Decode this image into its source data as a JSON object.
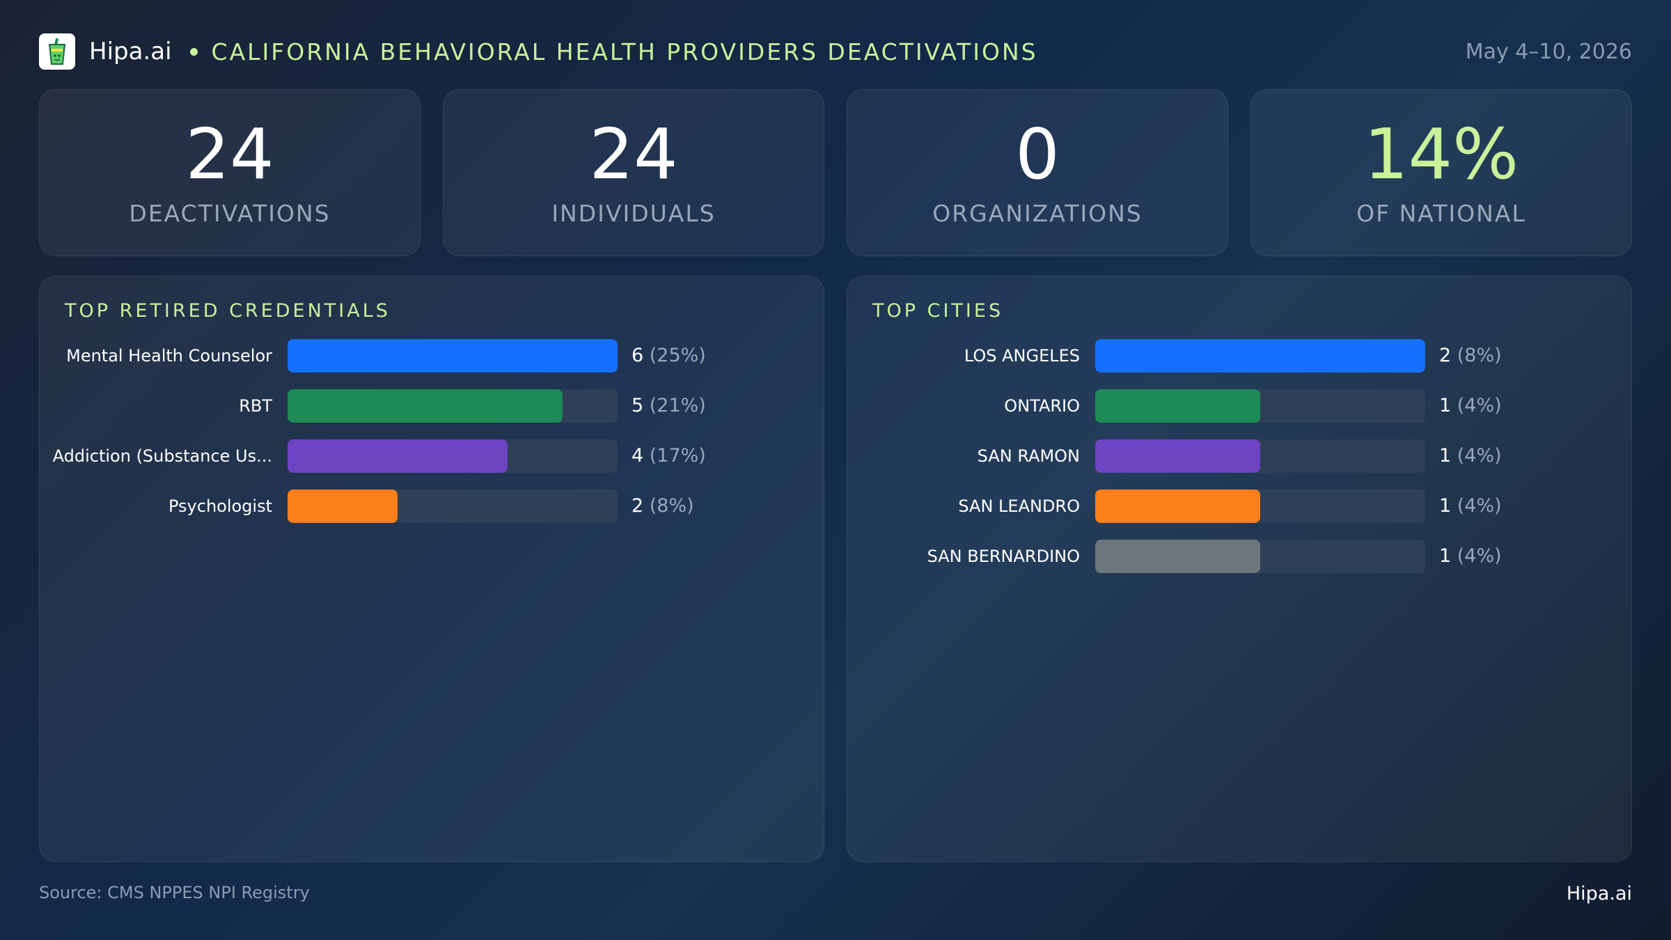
{
  "header": {
    "brand": "Hipa.ai",
    "title": "CALIFORNIA BEHAVIORAL HEALTH PROVIDERS DEACTIVATIONS",
    "date": "May 4–10, 2026",
    "logo_icon": "cup-icon"
  },
  "kpis": [
    {
      "value": "24",
      "label": "DEACTIVATIONS",
      "color": "#ffffff"
    },
    {
      "value": "24",
      "label": "INDIVIDUALS",
      "color": "#ffffff"
    },
    {
      "value": "0",
      "label": "ORGANIZATIONS",
      "color": "#ffffff"
    },
    {
      "value": "14%",
      "label": "OF NATIONAL",
      "color": "#c9f29b"
    }
  ],
  "chart_data": [
    {
      "type": "bar",
      "orientation": "horizontal",
      "title": "TOP RETIRED CREDENTIALS",
      "categories": [
        "Mental Health Counselor",
        "RBT",
        "Addiction (Substance Us...",
        "Psychologist"
      ],
      "values": [
        6,
        5,
        4,
        2
      ],
      "percent_labels": [
        "(25%)",
        "(21%)",
        "(17%)",
        "(8%)"
      ],
      "colors": [
        "#1570ff",
        "#1e8a55",
        "#6e44c2",
        "#fd7f1a"
      ],
      "xlim": [
        0,
        6
      ]
    },
    {
      "type": "bar",
      "orientation": "horizontal",
      "title": "TOP CITIES",
      "categories": [
        "LOS ANGELES",
        "ONTARIO",
        "SAN RAMON",
        "SAN LEANDRO",
        "SAN BERNARDINO"
      ],
      "values": [
        2,
        1,
        1,
        1,
        1
      ],
      "percent_labels": [
        "(8%)",
        "(4%)",
        "(4%)",
        "(4%)",
        "(4%)"
      ],
      "colors": [
        "#1570ff",
        "#1e8a55",
        "#6e44c2",
        "#fd7f1a",
        "#6d757d"
      ],
      "xlim": [
        0,
        2
      ]
    }
  ],
  "footer": {
    "source": "Source: CMS NPPES NPI Registry",
    "brand": "Hipa.ai"
  }
}
